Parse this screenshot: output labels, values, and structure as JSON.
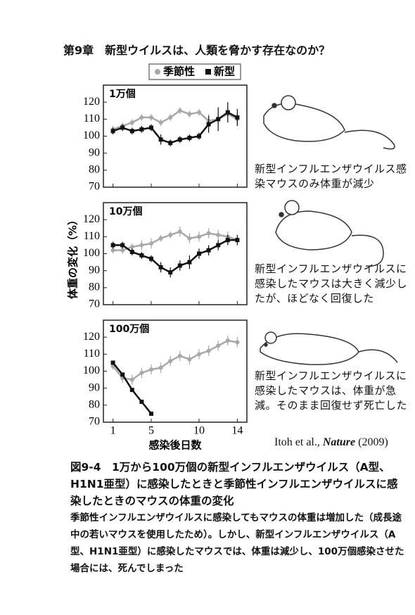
{
  "header": "第9章　新型ウイルスは、人類を脅かす存在なのか？",
  "chart_data": [
    {
      "type": "line",
      "title": "1万個",
      "annotation": "新型インフルエンザウイルス感染マウスのみ体重が減少",
      "ylabel": "体重の変化（%）",
      "x": [
        1,
        2,
        3,
        4,
        5,
        6,
        7,
        8,
        9,
        10,
        11,
        12,
        13,
        14
      ],
      "xlim": [
        0,
        15
      ],
      "xticks": [
        1,
        5,
        10,
        14
      ],
      "ylim": [
        70,
        130
      ],
      "yticks": [
        70,
        80,
        90,
        100,
        110,
        120
      ],
      "series": [
        {
          "name": "季節性",
          "color": "#a8a8a8",
          "values": [
            104,
            106,
            108,
            111,
            111,
            108,
            111,
            115,
            113,
            114,
            109,
            110,
            113,
            110
          ],
          "errors": [
            2,
            2,
            2,
            2,
            2,
            2,
            2,
            2,
            2,
            2,
            4,
            3,
            4,
            4
          ]
        },
        {
          "name": "新型",
          "color": "#111111",
          "values": [
            103,
            105,
            103,
            104,
            105,
            98,
            96,
            98,
            99,
            100,
            107,
            110,
            114,
            111
          ],
          "errors": [
            2,
            2,
            2,
            2,
            2,
            3,
            2,
            2,
            2,
            2,
            5,
            7,
            6,
            5
          ]
        }
      ]
    },
    {
      "type": "line",
      "title": "10万個",
      "annotation": "新型インフルエンザウイルスに感染したマウスは大きく減少したが、ほどなく回復した",
      "x": [
        1,
        2,
        3,
        4,
        5,
        6,
        7,
        8,
        9,
        10,
        11,
        12,
        13,
        14
      ],
      "xlim": [
        0,
        15
      ],
      "xticks": [
        1,
        5,
        10,
        14
      ],
      "ylim": [
        70,
        130
      ],
      "yticks": [
        70,
        80,
        90,
        100,
        110,
        120
      ],
      "series": [
        {
          "color": "#a8a8a8",
          "values": [
            102,
            102,
            104,
            105,
            106,
            109,
            111,
            113,
            109,
            110,
            112,
            111,
            110,
            108
          ],
          "errors": [
            2,
            2,
            2,
            3,
            3,
            2,
            2,
            3,
            3,
            3,
            3,
            3,
            3,
            3
          ]
        },
        {
          "color": "#111111",
          "values": [
            105,
            105,
            101,
            99,
            97,
            92,
            89,
            93,
            95,
            100,
            102,
            105,
            108,
            108
          ],
          "errors": [
            2,
            2,
            2,
            2,
            2,
            3,
            3,
            3,
            4,
            3,
            3,
            3,
            3,
            3
          ]
        }
      ]
    },
    {
      "type": "line",
      "title": "100万個",
      "annotation": "新型インフルエンザウイルスに感染したマウスは、体重が急減。そのまま回復せず死亡した",
      "xlabel": "感染後日数",
      "x": [
        1,
        2,
        3,
        4,
        5,
        6,
        7,
        8,
        9,
        10,
        11,
        12,
        13,
        14
      ],
      "xlim": [
        0,
        15
      ],
      "xticks": [
        1,
        5,
        10,
        14
      ],
      "ylim": [
        70,
        130
      ],
      "yticks": [
        70,
        80,
        90,
        100,
        110,
        120
      ],
      "series": [
        {
          "color": "#a8a8a8",
          "values": [
            103,
            96,
            95,
            99,
            101,
            102,
            106,
            109,
            107,
            110,
            112,
            115,
            118,
            117
          ],
          "errors": [
            2,
            3,
            3,
            3,
            3,
            3,
            3,
            3,
            3,
            3,
            3,
            3,
            3,
            3
          ]
        },
        {
          "color": "#111111",
          "values": [
            105,
            98,
            89,
            82,
            75,
            null,
            null,
            null,
            null,
            null,
            null,
            null,
            null,
            null
          ],
          "errors": [
            1,
            1,
            1,
            1,
            1,
            null,
            null,
            null,
            null,
            null,
            null,
            null,
            null,
            null
          ]
        }
      ]
    }
  ],
  "citation": {
    "authors": "Itoh et al.,",
    "journal": "Nature",
    "year": "(2009)"
  },
  "figure_caption": "図9-4　1万から100万個の新型インフルエンザウイルス（A型、H1N1亜型）に感染したときと季節性インフルエンザウイルスに感染したときのマウスの体重の変化",
  "body": "季節性インフルエンザウイルスに感染してもマウスの体重は増加した（成長途中の若いマウスを使用したため）。しかし、新型インフルエンザウイルス（A型、H1N1亜型）に感染したマウスでは、体重は減少し、100万個感染させた場合には、死んでしまった"
}
